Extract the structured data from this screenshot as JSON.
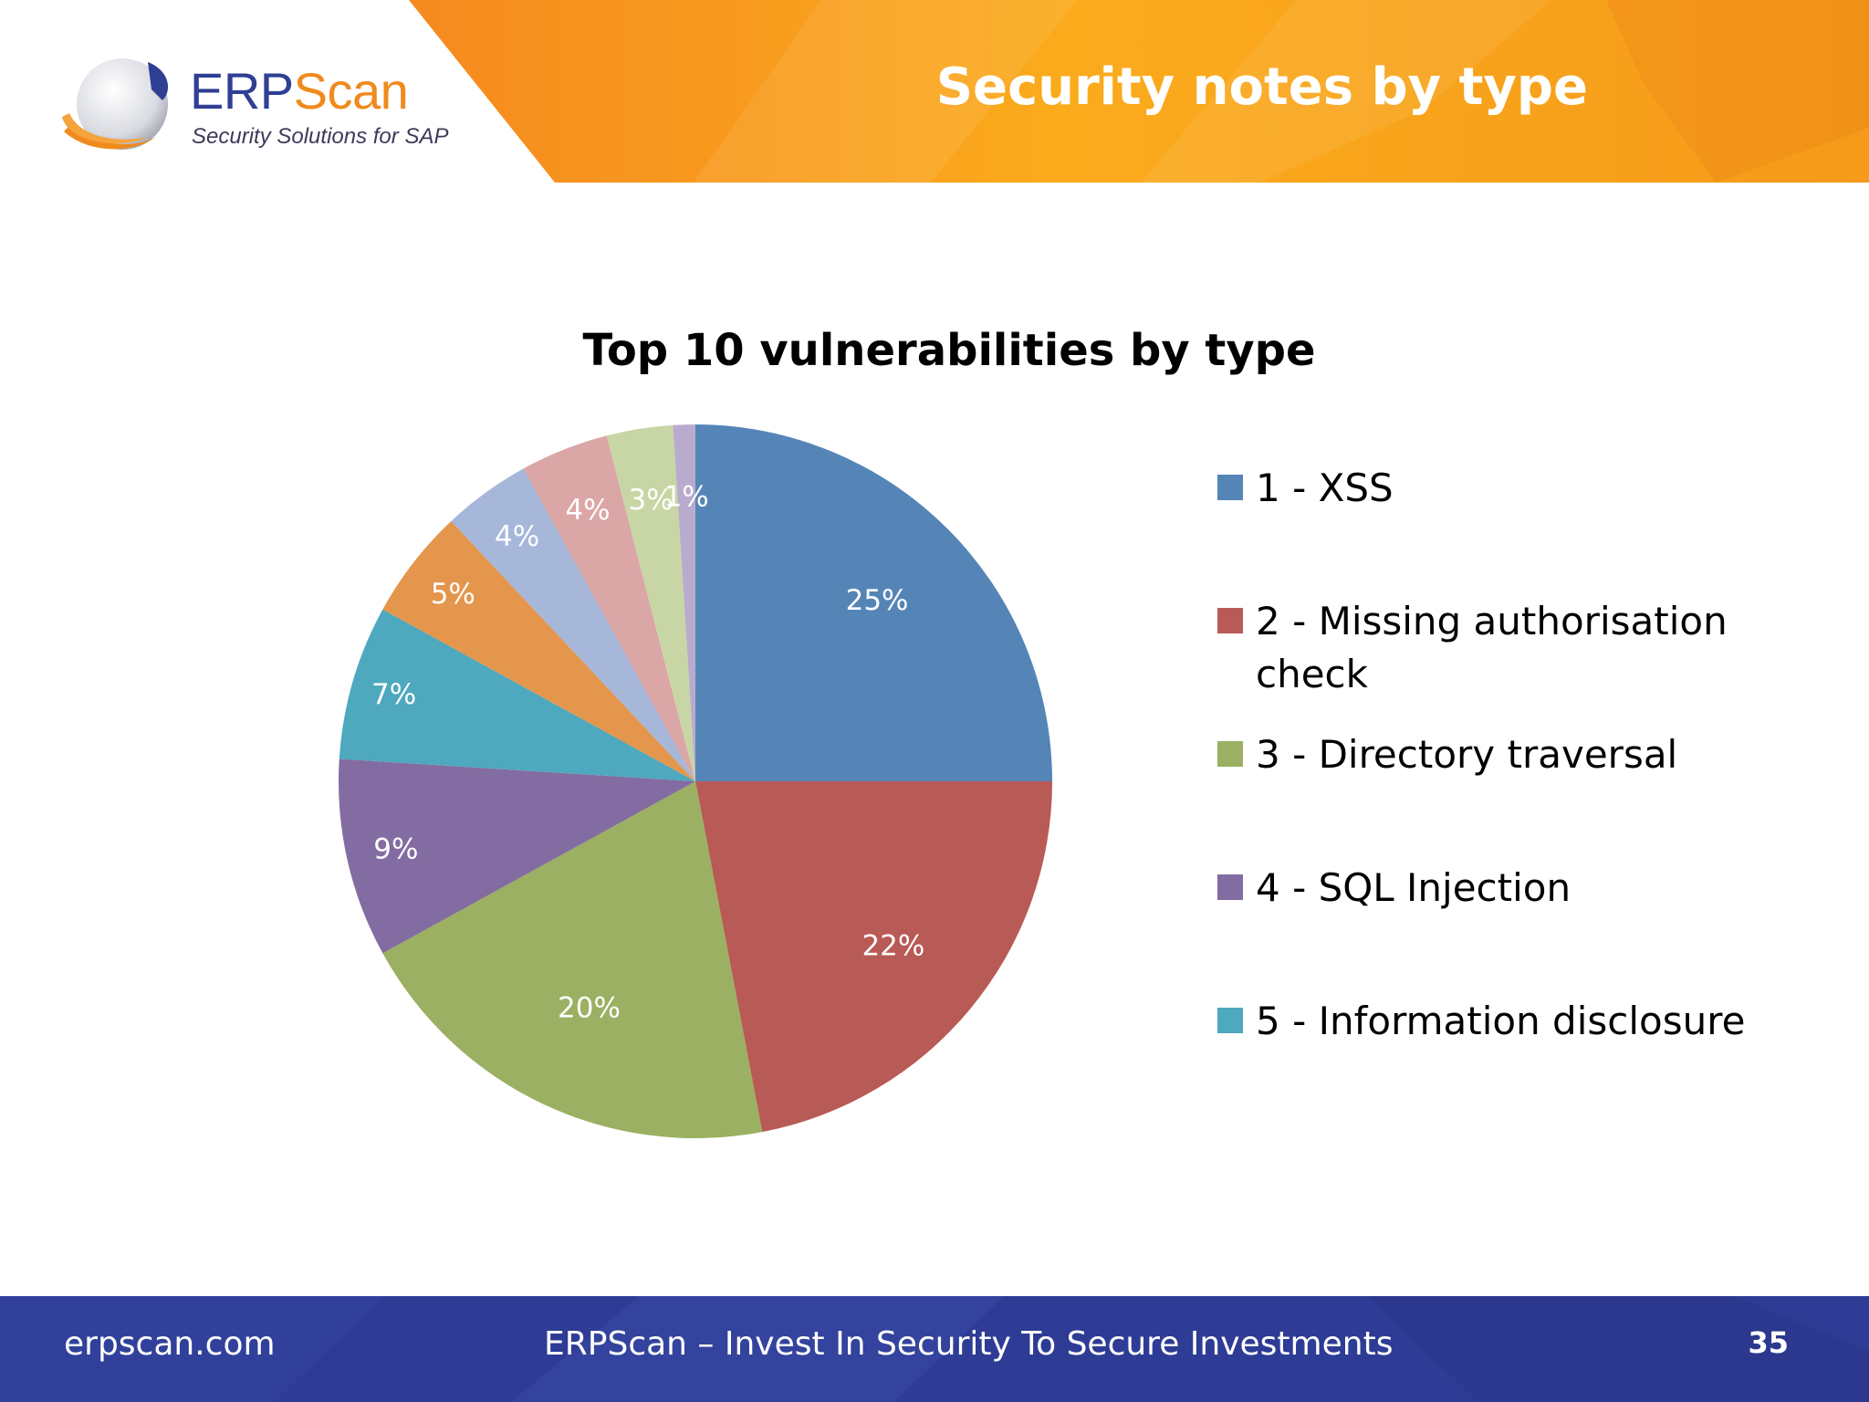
{
  "header": {
    "logo": {
      "brand_part1": "ERP",
      "brand_part2": "Scan",
      "tagline": "Security Solutions for SAP"
    },
    "title": "Security notes by type"
  },
  "chart_data": {
    "type": "pie",
    "title": "Top 10 vulnerabilities by type",
    "slices": [
      {
        "label": "1 - XSS",
        "value": 25,
        "display": "25%",
        "color": "#5585b7"
      },
      {
        "label": "2 - Missing authorisation check",
        "value": 22,
        "display": "22%",
        "color": "#b85a55"
      },
      {
        "label": "3 - Directory traversal",
        "value": 20,
        "display": "20%",
        "color": "#9bb062"
      },
      {
        "label": "4 - SQL Injection",
        "value": 9,
        "display": "9%",
        "color": "#836ca1"
      },
      {
        "label": "5 - Information disclosure",
        "value": 7,
        "display": "7%",
        "color": "#4ea8be"
      },
      {
        "label": "",
        "value": 5,
        "display": "5%",
        "color": "#e4964d"
      },
      {
        "label": "",
        "value": 4,
        "display": "4%",
        "color": "#a6b7d9"
      },
      {
        "label": "",
        "value": 4,
        "display": "4%",
        "color": "#dba6a6"
      },
      {
        "label": "",
        "value": 3,
        "display": "3%",
        "color": "#c8d6a6"
      },
      {
        "label": "",
        "value": 1,
        "display": "1%",
        "color": "#b9abcd"
      }
    ],
    "legend": [
      {
        "label": "1 - XSS",
        "color": "#5585b7"
      },
      {
        "label": "2 - Missing authorisation check",
        "color": "#b85a55"
      },
      {
        "label": "3 - Directory traversal",
        "color": "#9bb062"
      },
      {
        "label": "4 - SQL Injection",
        "color": "#836ca1"
      },
      {
        "label": "5 - Information disclosure",
        "color": "#4ea8be"
      }
    ],
    "legend_position": "right"
  },
  "footer": {
    "url": "erpscan.com",
    "slogan": "ERPScan – Invest In Security To Secure Investments",
    "page_number": "35"
  }
}
